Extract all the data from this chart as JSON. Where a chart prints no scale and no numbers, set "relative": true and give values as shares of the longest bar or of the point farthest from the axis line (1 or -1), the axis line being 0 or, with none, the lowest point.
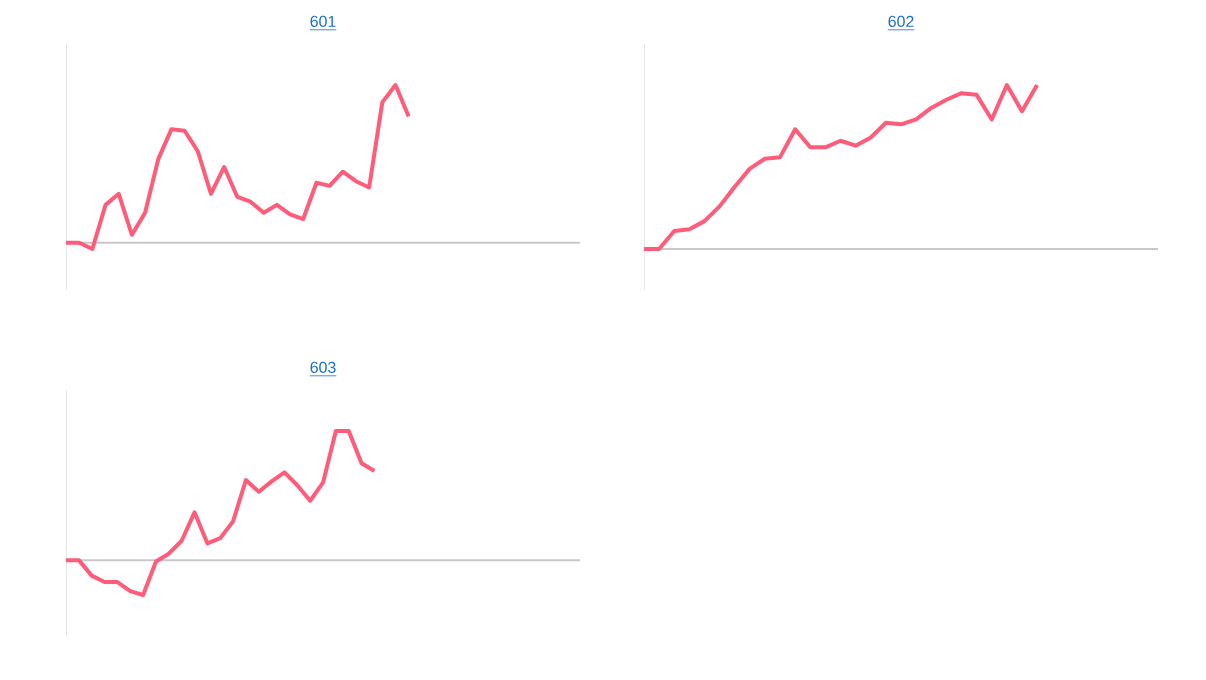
{
  "chart_data": [
    {
      "type": "line",
      "title": "601",
      "relative": true,
      "color": "#ff5c7a",
      "categories": [
        null,
        null,
        null,
        null,
        null,
        null,
        null,
        null,
        null,
        null,
        null,
        null,
        null,
        null,
        null,
        null,
        null,
        null,
        null,
        null,
        null,
        null,
        null,
        null,
        null,
        null,
        null,
        null,
        null,
        null,
        null,
        null,
        null,
        null,
        null,
        null,
        null,
        null,
        null,
        null
      ],
      "values": [
        0,
        0,
        -0.04,
        0.24,
        0.31,
        0.05,
        0.19,
        0.53,
        0.72,
        0.71,
        0.58,
        0.31,
        0.48,
        0.29,
        0.26,
        0.19,
        0.24,
        0.18,
        0.15,
        0.38,
        0.36,
        0.45,
        0.39,
        0.35,
        0.89,
        1.0,
        0.8,
        null,
        null,
        null,
        null,
        null,
        null,
        null,
        null,
        null,
        null,
        null,
        null,
        null
      ]
    },
    {
      "type": "line",
      "title": "602",
      "relative": true,
      "color": "#ff5c7a",
      "categories": [
        null,
        null,
        null,
        null,
        null,
        null,
        null,
        null,
        null,
        null,
        null,
        null,
        null,
        null,
        null,
        null,
        null,
        null,
        null,
        null,
        null,
        null,
        null,
        null,
        null,
        null,
        null,
        null,
        null,
        null,
        null,
        null,
        null,
        null,
        null
      ],
      "values": [
        0,
        0,
        0.11,
        0.12,
        0.17,
        0.26,
        0.38,
        0.49,
        0.55,
        0.56,
        0.73,
        0.62,
        0.62,
        0.66,
        0.63,
        0.68,
        0.77,
        0.76,
        0.79,
        0.86,
        0.91,
        0.95,
        0.94,
        0.79,
        1.0,
        0.84,
        1.0,
        null,
        null,
        null,
        null,
        null,
        null,
        null,
        null
      ]
    },
    {
      "type": "line",
      "title": "603",
      "relative": true,
      "color": "#ff5c7a",
      "categories": [
        null,
        null,
        null,
        null,
        null,
        null,
        null,
        null,
        null,
        null,
        null,
        null,
        null,
        null,
        null,
        null,
        null,
        null,
        null,
        null,
        null,
        null,
        null,
        null,
        null,
        null,
        null,
        null,
        null,
        null,
        null,
        null,
        null,
        null,
        null,
        null,
        null,
        null,
        null,
        null,
        null
      ],
      "values": [
        0,
        0,
        -0.12,
        -0.17,
        -0.17,
        -0.24,
        -0.27,
        -0.01,
        0.05,
        0.15,
        0.37,
        0.13,
        0.17,
        0.3,
        0.62,
        0.53,
        0.61,
        0.68,
        0.58,
        0.46,
        0.6,
        1.0,
        1.0,
        0.75,
        0.69,
        null,
        null,
        null,
        null,
        null,
        null,
        null,
        null,
        null,
        null,
        null,
        null,
        null,
        null,
        null,
        null
      ]
    }
  ]
}
